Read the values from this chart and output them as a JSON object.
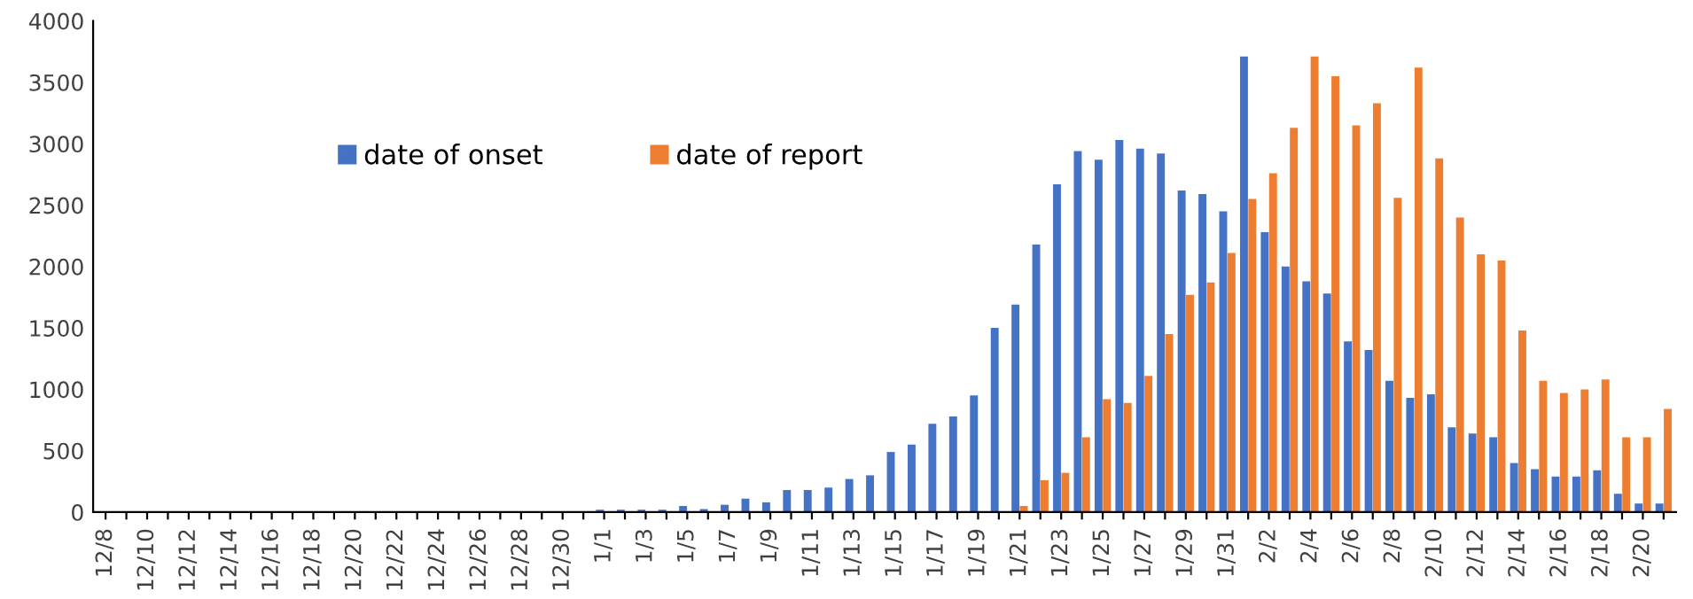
{
  "chart_data": {
    "type": "bar",
    "categories": [
      "12/8",
      null,
      "12/10",
      null,
      "12/12",
      null,
      "12/14",
      null,
      "12/16",
      null,
      "12/18",
      null,
      "12/20",
      null,
      "12/22",
      null,
      "12/24",
      null,
      "12/26",
      null,
      "12/28",
      null,
      "12/30",
      null,
      "1/1",
      null,
      "1/3",
      null,
      "1/5",
      null,
      "1/7",
      null,
      "1/9",
      null,
      "1/11",
      null,
      "1/13",
      null,
      "1/15",
      null,
      "1/17",
      null,
      "1/19",
      null,
      "1/21",
      null,
      "1/23",
      null,
      "1/25",
      null,
      "1/27",
      null,
      "1/29",
      null,
      "1/31",
      null,
      "2/2",
      null,
      "2/4",
      null,
      "2/6",
      null,
      "2/8",
      null,
      "2/10",
      null,
      "2/12",
      null,
      "2/14",
      null,
      "2/16",
      null,
      "2/18",
      null,
      "2/20",
      null
    ],
    "series": [
      {
        "name": "date of onset",
        "color": "#4472c4",
        "values": [
          0,
          0,
          0,
          0,
          0,
          0,
          0,
          0,
          0,
          0,
          0,
          0,
          0,
          0,
          0,
          0,
          0,
          0,
          0,
          0,
          0,
          0,
          0,
          0,
          20,
          20,
          20,
          20,
          50,
          25,
          60,
          110,
          80,
          180,
          180,
          200,
          270,
          300,
          490,
          550,
          720,
          780,
          950,
          1500,
          1690,
          2180,
          2670,
          2940,
          2870,
          3030,
          2960,
          2920,
          2620,
          2590,
          2450,
          3710,
          2280,
          2000,
          1880,
          1780,
          1390,
          1320,
          1070,
          930,
          960,
          690,
          640,
          610,
          400,
          350,
          290,
          290,
          340,
          150,
          70,
          70
        ]
      },
      {
        "name": "date of report",
        "color": "#ed7d31",
        "values": [
          0,
          0,
          0,
          0,
          0,
          0,
          0,
          0,
          0,
          0,
          0,
          0,
          0,
          0,
          0,
          0,
          0,
          0,
          0,
          0,
          0,
          0,
          0,
          0,
          0,
          0,
          0,
          0,
          0,
          0,
          0,
          0,
          0,
          0,
          0,
          0,
          0,
          0,
          0,
          0,
          0,
          0,
          0,
          0,
          50,
          260,
          320,
          610,
          920,
          890,
          1110,
          1450,
          1770,
          1870,
          2110,
          2550,
          2760,
          3130,
          3710,
          3550,
          3150,
          3330,
          2560,
          3620,
          2880,
          2400,
          2100,
          2050,
          1480,
          1070,
          970,
          1000,
          1080,
          610,
          610,
          840
        ]
      }
    ],
    "ylim": [
      0,
      4000
    ],
    "yticks": [
      0,
      500,
      1000,
      1500,
      2000,
      2500,
      3000,
      3500,
      4000
    ],
    "grid": false,
    "legend": "top left"
  }
}
